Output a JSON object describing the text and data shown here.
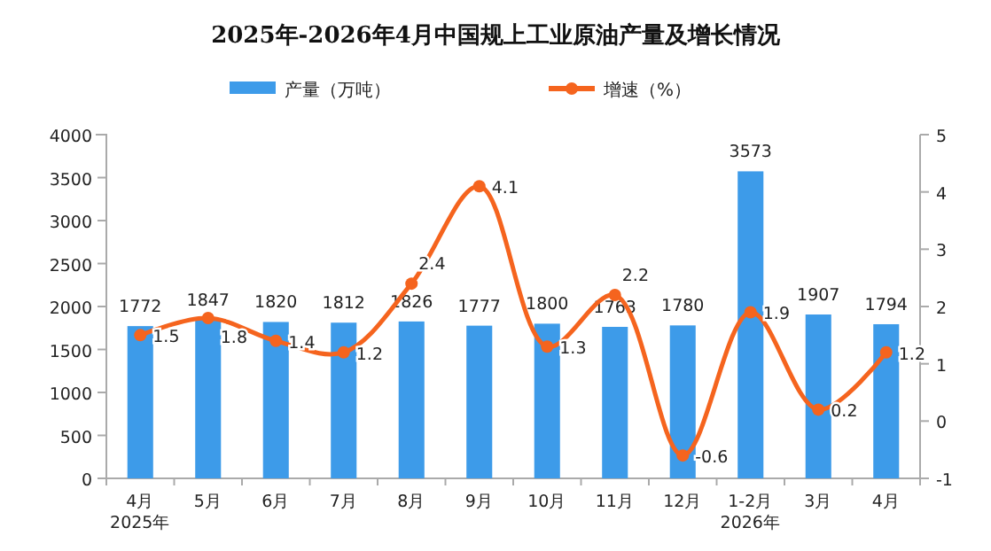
{
  "chart_data": {
    "type": "bar",
    "title": "2025年-2026年4月中国规上工业原油产量及增长情况",
    "categories": [
      "4月\n2025年",
      "5月",
      "6月",
      "7月",
      "8月",
      "9月",
      "10月",
      "11月",
      "12月",
      "1-2月\n2026年",
      "3月",
      "4月"
    ],
    "series": [
      {
        "name": "产量（万吨）",
        "color": "#3d9be9",
        "values": [
          1772,
          1847,
          1820,
          1812,
          1826,
          1777,
          1800,
          1763,
          1780,
          3573,
          1907,
          1794
        ]
      },
      {
        "name": "增速（%）",
        "type": "line",
        "axis": "y2",
        "color": "#f5641e",
        "marker": "circle",
        "values": [
          1.5,
          1.8,
          1.4,
          1.2,
          2.4,
          4.1,
          1.3,
          2.2,
          -0.6,
          1.9,
          0.2,
          1.2
        ]
      }
    ],
    "ylim": [
      0,
      4000
    ],
    "yticks": [
      0,
      500,
      1000,
      1500,
      2000,
      2500,
      3000,
      3500,
      4000
    ],
    "y2lim": [
      -1,
      5
    ],
    "y2ticks": [
      -1,
      0,
      1,
      2,
      3,
      4,
      5
    ],
    "data_labels": true,
    "legend": "top",
    "grid": false
  }
}
